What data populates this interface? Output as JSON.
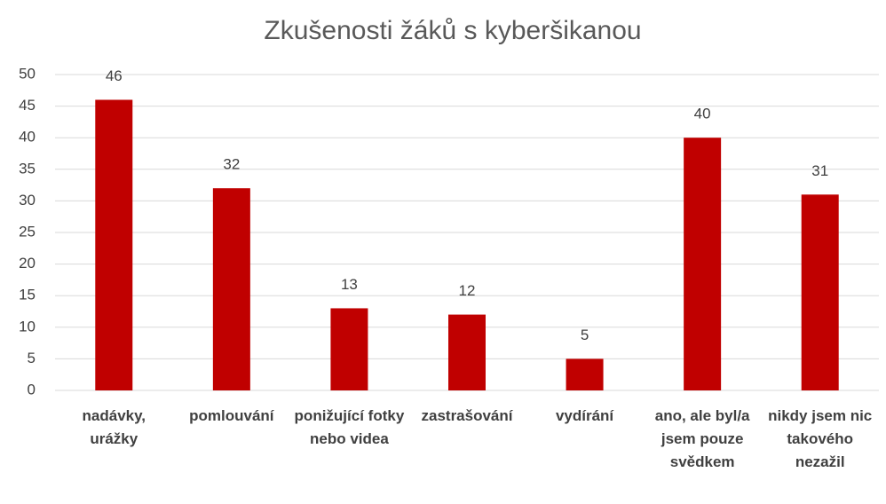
{
  "chart_data": {
    "type": "bar",
    "title": "Zkušenosti žáků s kyberšikanou",
    "categories": [
      "nadávky, urážky",
      "pomlouvání",
      "ponižující fotky nebo videa",
      "zastrašování",
      "vydírání",
      "ano, ale byl/a jsem pouze svědkem",
      "nikdy jsem nic takového nezažil"
    ],
    "values": [
      46,
      32,
      13,
      12,
      5,
      40,
      31
    ],
    "color": "#c00000",
    "ylim": [
      0,
      50
    ],
    "yticks": [
      0,
      5,
      10,
      15,
      20,
      25,
      30,
      35,
      40,
      45,
      50
    ],
    "grid": true
  }
}
